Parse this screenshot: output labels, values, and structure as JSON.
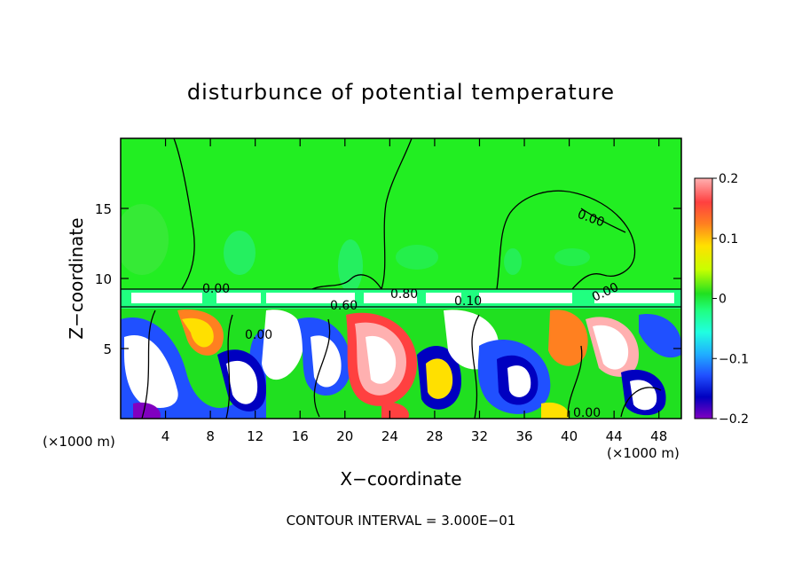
{
  "chart_data": {
    "type": "heatmap",
    "title": "disturbunce of potential temperature",
    "xlabel": "X−coordinate",
    "ylabel": "Z−coordinate",
    "x_unit_label_left": "(×1000 m)",
    "x_unit_label_right": "(×1000 m)",
    "footer": "CONTOUR INTERVAL = 3.000E−01",
    "xlim": [
      0,
      50
    ],
    "ylim": [
      0,
      20
    ],
    "x_ticks": [
      4,
      8,
      12,
      16,
      20,
      24,
      28,
      32,
      36,
      40,
      44,
      48
    ],
    "x_tick_labels": [
      "4",
      "8",
      "12",
      "16",
      "20",
      "24",
      "28",
      "32",
      "36",
      "40",
      "44",
      "48"
    ],
    "y_ticks": [
      5,
      10,
      15
    ],
    "y_tick_labels": [
      "5",
      "10",
      "15"
    ],
    "colorbar": {
      "range": [
        -0.2,
        0.2
      ],
      "tick_values": [
        0.2,
        0.1,
        0,
        -0.1,
        -0.2
      ],
      "tick_labels": [
        "0.2",
        "0.1",
        "0",
        "−0.1",
        "−0.2"
      ],
      "colors": [
        "#ffb0b0",
        "#ff4040",
        "#ff8020",
        "#ffe000",
        "#c8ff00",
        "#20e020",
        "#20ff80",
        "#20ffe0",
        "#20b0ff",
        "#2050ff",
        "#0000c0",
        "#8000c0"
      ]
    },
    "contour_labels": [
      {
        "text": "0.00",
        "x": 8.8,
        "z": 9.2
      },
      {
        "text": "0.60",
        "x": 19.8,
        "z": 8.2
      },
      {
        "text": "0.00",
        "x": 12.5,
        "z": 6.0
      },
      {
        "text": "0.80",
        "x": 25.8,
        "z": 8.9
      },
      {
        "text": "0.10",
        "x": 30.5,
        "z": 8.4
      },
      {
        "text": "0.00",
        "x": 41.5,
        "z": 16.2
      },
      {
        "text": "0.00",
        "x": 42.5,
        "z": 8.7
      },
      {
        "text": "0.00",
        "x": 42.2,
        "z": 0.4
      }
    ]
  }
}
